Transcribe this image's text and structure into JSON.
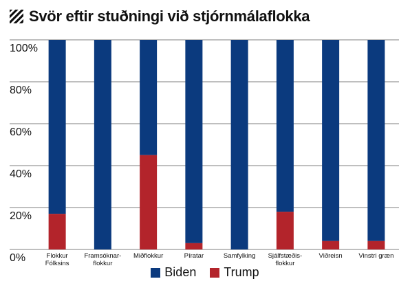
{
  "colors": {
    "biden": "#0b3a7e",
    "trump": "#b3242b",
    "grid": "#000000",
    "hatch": "#111111"
  },
  "title_icon": "hatch-pattern-icon",
  "chart_data": {
    "type": "bar",
    "stacked": true,
    "title": "Svör eftir stuðningi við stjórnmálaflokka",
    "categories": [
      [
        "Flokkur",
        "Fólksins"
      ],
      [
        "Framsóknar-",
        "flokkur"
      ],
      [
        "Miðflokkur"
      ],
      [
        "Píratar"
      ],
      [
        "Samfylking"
      ],
      [
        "Sjálfstæðis-",
        "flokkur"
      ],
      [
        "Viðreisn"
      ],
      [
        "Vinstri græn"
      ]
    ],
    "series": [
      {
        "name": "Trump",
        "values": [
          17,
          0,
          45,
          3,
          0,
          18,
          4,
          4
        ]
      },
      {
        "name": "Biden",
        "values": [
          83,
          100,
          55,
          97,
          100,
          82,
          96,
          96
        ]
      }
    ],
    "yticks": [
      "0%",
      "20%",
      "40%",
      "60%",
      "80%",
      "100%"
    ],
    "ylim": [
      0,
      100
    ],
    "grid": true,
    "legend": "bottom-center"
  }
}
